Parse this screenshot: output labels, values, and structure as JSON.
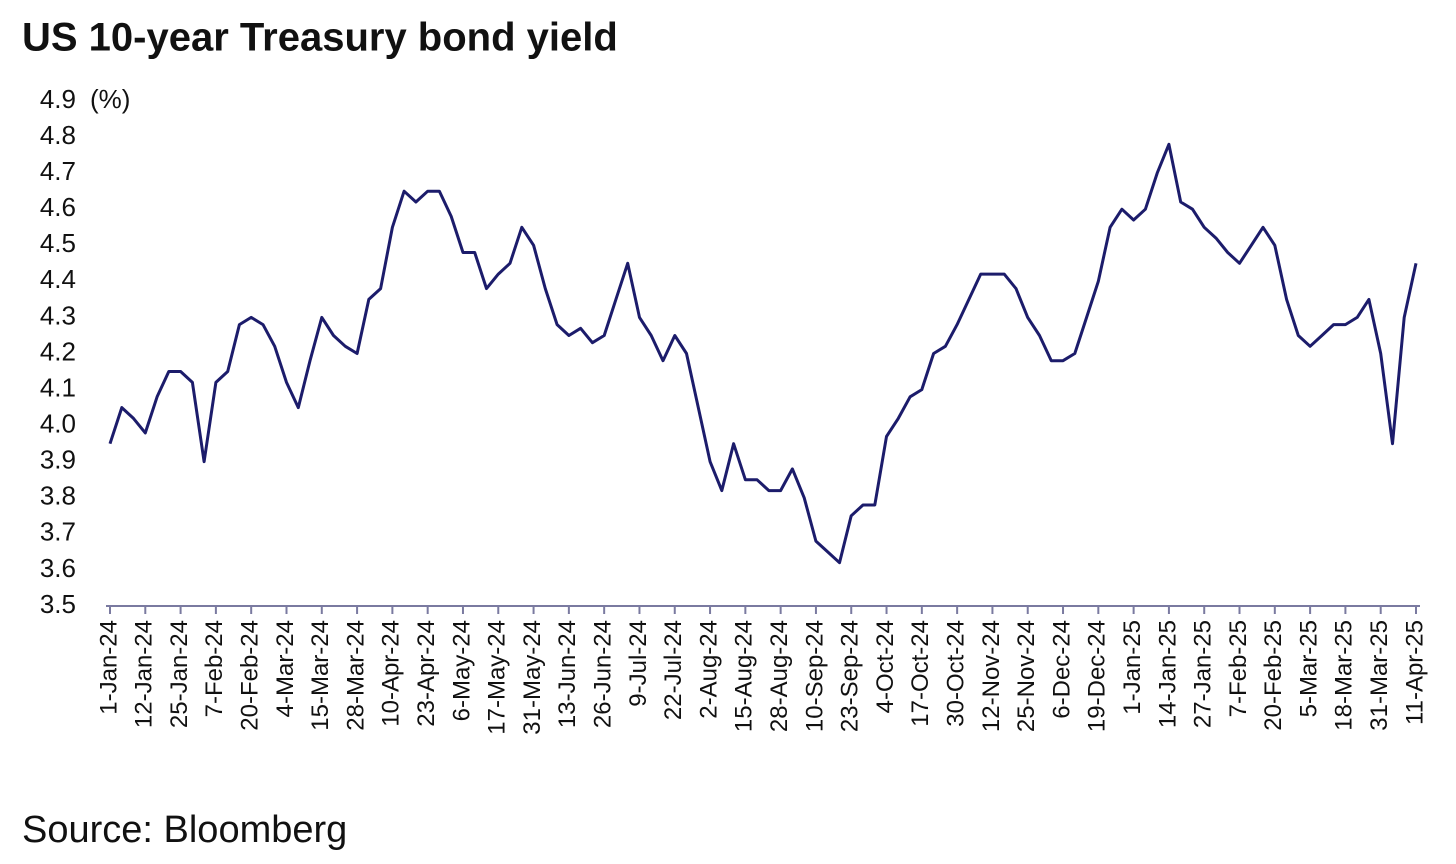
{
  "chart_data": {
    "type": "line",
    "title": "US 10-year Treasury bond yield",
    "ylabel": "(%)",
    "source": "Source: Bloomberg",
    "color": "#1c1c6b",
    "categories": [
      "1-Jan-24",
      null,
      null,
      "12-Jan-24",
      null,
      null,
      "25-Jan-24",
      null,
      null,
      "7-Feb-24",
      null,
      null,
      "20-Feb-24",
      null,
      null,
      "4-Mar-24",
      null,
      null,
      "15-Mar-24",
      null,
      null,
      "28-Mar-24",
      null,
      null,
      "10-Apr-24",
      null,
      null,
      "23-Apr-24",
      null,
      null,
      "6-May-24",
      null,
      null,
      "17-May-24",
      null,
      null,
      "31-May-24",
      null,
      null,
      "13-Jun-24",
      null,
      null,
      "26-Jun-24",
      null,
      null,
      "9-Jul-24",
      null,
      null,
      "22-Jul-24",
      null,
      null,
      "2-Aug-24",
      null,
      null,
      "15-Aug-24",
      null,
      null,
      "28-Aug-24",
      null,
      null,
      "10-Sep-24",
      null,
      null,
      "23-Sep-24",
      null,
      null,
      "4-Oct-24",
      null,
      null,
      "17-Oct-24",
      null,
      null,
      "30-Oct-24",
      null,
      null,
      "12-Nov-24",
      null,
      null,
      "25-Nov-24",
      null,
      null,
      "6-Dec-24",
      null,
      null,
      "19-Dec-24",
      null,
      null,
      "1-Jan-25",
      null,
      null,
      "14-Jan-25",
      null,
      null,
      "27-Jan-25",
      null,
      null,
      "7-Feb-25",
      null,
      null,
      "20-Feb-25",
      null,
      null,
      "5-Mar-25",
      null,
      null,
      "18-Mar-25",
      null,
      null,
      "31-Mar-25",
      null,
      null,
      "11-Apr-25"
    ],
    "values": [
      3.95,
      4.05,
      4.02,
      3.98,
      4.08,
      4.15,
      4.15,
      4.12,
      3.9,
      4.12,
      4.15,
      4.28,
      4.3,
      4.28,
      4.22,
      4.12,
      4.05,
      4.18,
      4.3,
      4.25,
      4.22,
      4.2,
      4.35,
      4.38,
      4.55,
      4.65,
      4.62,
      4.65,
      4.65,
      4.58,
      4.48,
      4.48,
      4.38,
      4.42,
      4.45,
      4.55,
      4.5,
      4.38,
      4.28,
      4.25,
      4.27,
      4.23,
      4.25,
      4.35,
      4.45,
      4.3,
      4.25,
      4.18,
      4.25,
      4.2,
      4.05,
      3.9,
      3.82,
      3.95,
      3.85,
      3.85,
      3.82,
      3.82,
      3.88,
      3.8,
      3.68,
      3.65,
      3.62,
      3.75,
      3.78,
      3.78,
      3.97,
      4.02,
      4.08,
      4.1,
      4.2,
      4.22,
      4.28,
      4.35,
      4.42,
      4.42,
      4.42,
      4.38,
      4.3,
      4.25,
      4.18,
      4.18,
      4.2,
      4.3,
      4.4,
      4.55,
      4.6,
      4.57,
      4.6,
      4.7,
      4.78,
      4.62,
      4.6,
      4.55,
      4.52,
      4.48,
      4.45,
      4.5,
      4.55,
      4.5,
      4.35,
      4.25,
      4.22,
      4.25,
      4.28,
      4.28,
      4.3,
      4.35,
      4.2,
      3.95,
      4.3,
      4.45
    ],
    "ylim": [
      3.5,
      4.9
    ],
    "yticks": [
      3.5,
      3.6,
      3.7,
      3.8,
      3.9,
      {
        "value": 4,
        "label": "4.0"
      },
      4.1,
      4.2,
      4.3,
      4.4,
      4.5,
      4.6,
      4.7,
      4.8,
      4.9
    ]
  }
}
